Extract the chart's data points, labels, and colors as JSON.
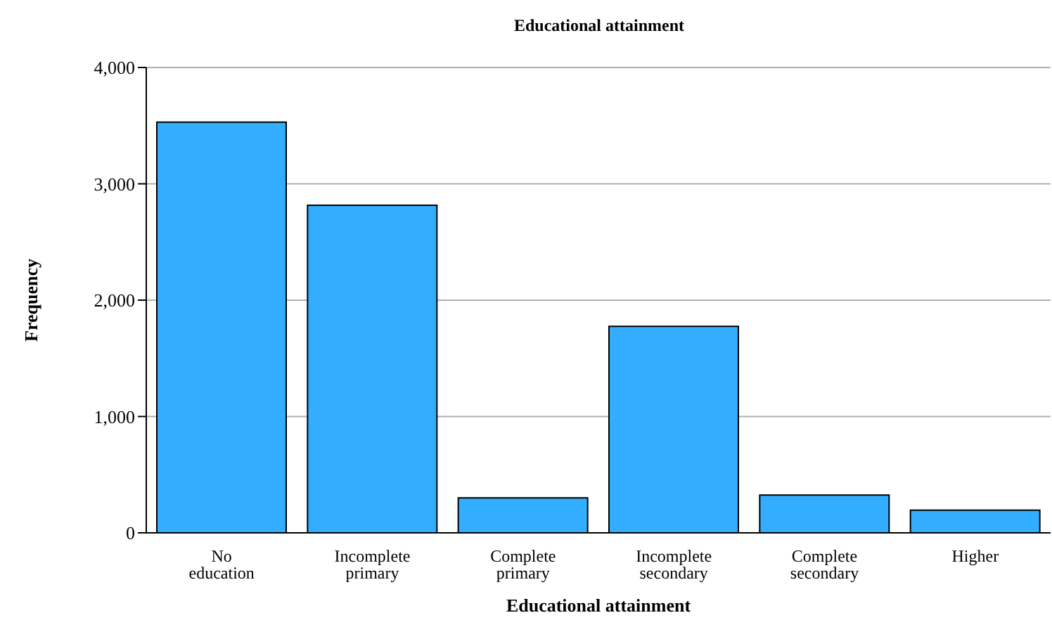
{
  "chart_data": {
    "type": "bar",
    "title": "Educational attainment",
    "xlabel": "Educational attainment",
    "ylabel": "Frequency",
    "categories": [
      "No education",
      "Incomplete primary",
      "Complete primary",
      "Incomplete secondary",
      "Complete secondary",
      "Higher"
    ],
    "values": [
      3530,
      2815,
      300,
      1775,
      325,
      195
    ],
    "color": "#33adff",
    "ylim": [
      0,
      4000
    ],
    "yticks": [
      {
        "value": 0,
        "label": "0"
      },
      {
        "value": 1000,
        "label": "1,000"
      },
      {
        "value": 2000,
        "label": "2,000"
      },
      {
        "value": 3000,
        "label": "3,000"
      },
      {
        "value": 4000,
        "label": "4,000"
      }
    ],
    "grid": "y"
  }
}
